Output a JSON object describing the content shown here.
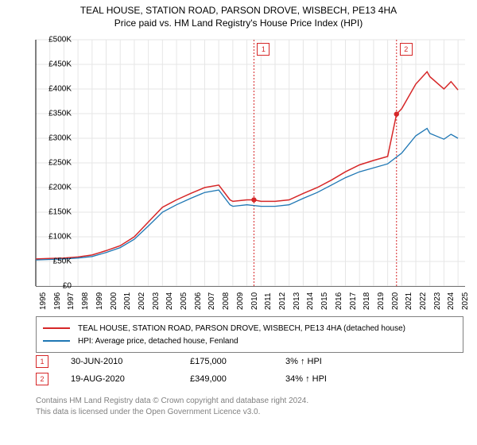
{
  "title_line1": "TEAL HOUSE, STATION ROAD, PARSON DROVE, WISBECH, PE13 4HA",
  "title_line2": "Price paid vs. HM Land Registry's House Price Index (HPI)",
  "chart": {
    "type": "line",
    "background_color": "#ffffff",
    "grid_color": "#e6e6e6",
    "axis_color": "#000000",
    "x_years": [
      1995,
      1996,
      1997,
      1998,
      1999,
      2000,
      2001,
      2002,
      2003,
      2004,
      2005,
      2006,
      2007,
      2008,
      2009,
      2010,
      2011,
      2012,
      2013,
      2014,
      2015,
      2016,
      2017,
      2018,
      2019,
      2020,
      2021,
      2022,
      2023,
      2024,
      2025
    ],
    "xlim": [
      1995,
      2025.5
    ],
    "ylim": [
      0,
      500000
    ],
    "ytick_step": 50000,
    "ytick_labels": [
      "£0",
      "£50K",
      "£100K",
      "£150K",
      "£200K",
      "£250K",
      "£300K",
      "£350K",
      "£400K",
      "£450K",
      "£500K"
    ],
    "series": [
      {
        "name": "price_paid",
        "label": "TEAL HOUSE, STATION ROAD, PARSON DROVE, WISBECH, PE13 4HA (detached house)",
        "color": "#d62728",
        "line_width": 1.5,
        "data": [
          [
            1995,
            55000
          ],
          [
            1996,
            56000
          ],
          [
            1997,
            57000
          ],
          [
            1998,
            59000
          ],
          [
            1999,
            63000
          ],
          [
            2000,
            72000
          ],
          [
            2001,
            82000
          ],
          [
            2002,
            100000
          ],
          [
            2003,
            130000
          ],
          [
            2004,
            160000
          ],
          [
            2005,
            175000
          ],
          [
            2006,
            188000
          ],
          [
            2007,
            200000
          ],
          [
            2008,
            205000
          ],
          [
            2008.8,
            175000
          ],
          [
            2009,
            172000
          ],
          [
            2010,
            175000
          ],
          [
            2010.5,
            175000
          ],
          [
            2011,
            172000
          ],
          [
            2012,
            172000
          ],
          [
            2013,
            175000
          ],
          [
            2014,
            188000
          ],
          [
            2015,
            200000
          ],
          [
            2016,
            215000
          ],
          [
            2017,
            232000
          ],
          [
            2018,
            246000
          ],
          [
            2019,
            255000
          ],
          [
            2020,
            263000
          ],
          [
            2020.63,
            349000
          ],
          [
            2021,
            360000
          ],
          [
            2022,
            410000
          ],
          [
            2022.8,
            435000
          ],
          [
            2023,
            425000
          ],
          [
            2024,
            400000
          ],
          [
            2024.5,
            415000
          ],
          [
            2025,
            398000
          ]
        ]
      },
      {
        "name": "hpi",
        "label": "HPI: Average price, detached house, Fenland",
        "color": "#1f77b4",
        "line_width": 1.3,
        "data": [
          [
            1995,
            53000
          ],
          [
            1996,
            54000
          ],
          [
            1997,
            55000
          ],
          [
            1998,
            57000
          ],
          [
            1999,
            60000
          ],
          [
            2000,
            68000
          ],
          [
            2001,
            78000
          ],
          [
            2002,
            95000
          ],
          [
            2003,
            122000
          ],
          [
            2004,
            150000
          ],
          [
            2005,
            165000
          ],
          [
            2006,
            178000
          ],
          [
            2007,
            190000
          ],
          [
            2008,
            195000
          ],
          [
            2008.8,
            165000
          ],
          [
            2009,
            162000
          ],
          [
            2010,
            165000
          ],
          [
            2011,
            162000
          ],
          [
            2012,
            162000
          ],
          [
            2013,
            165000
          ],
          [
            2014,
            178000
          ],
          [
            2015,
            190000
          ],
          [
            2016,
            205000
          ],
          [
            2017,
            220000
          ],
          [
            2018,
            232000
          ],
          [
            2019,
            240000
          ],
          [
            2020,
            248000
          ],
          [
            2021,
            270000
          ],
          [
            2022,
            305000
          ],
          [
            2022.8,
            320000
          ],
          [
            2023,
            310000
          ],
          [
            2024,
            298000
          ],
          [
            2024.5,
            308000
          ],
          [
            2025,
            300000
          ]
        ]
      }
    ],
    "sale_markers": [
      {
        "n": "1",
        "year": 2010.5,
        "price": 175000,
        "color": "#d62728"
      },
      {
        "n": "2",
        "year": 2020.63,
        "price": 349000,
        "color": "#d62728"
      }
    ],
    "label_fontsize": 10,
    "title_fontsize": 12
  },
  "legend": {
    "series1_color": "#d62728",
    "series1_label": "TEAL HOUSE, STATION ROAD, PARSON DROVE, WISBECH, PE13 4HA (detached house)",
    "series2_color": "#1f77b4",
    "series2_label": "HPI: Average price, detached house, Fenland"
  },
  "sales": [
    {
      "n": "1",
      "date": "30-JUN-2010",
      "price": "£175,000",
      "hpi": "3% ↑ HPI",
      "color": "#d62728"
    },
    {
      "n": "2",
      "date": "19-AUG-2020",
      "price": "£349,000",
      "hpi": "34% ↑ HPI",
      "color": "#d62728"
    }
  ],
  "footer_line1": "Contains HM Land Registry data © Crown copyright and database right 2024.",
  "footer_line2": "This data is licensed under the Open Government Licence v3.0."
}
